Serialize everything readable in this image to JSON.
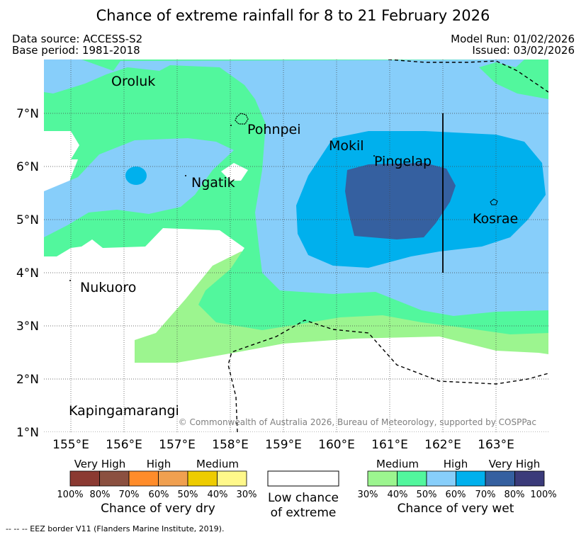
{
  "title": "Chance of extreme rainfall for 8 to 21 February 2026",
  "meta": {
    "data_source": "Data source: ACCESS-S2",
    "base_period": "Base period: 1981-2018",
    "model_run": "Model Run: 01/02/2026",
    "issued": "Issued: 03/02/2026"
  },
  "map": {
    "lon_ticks": [
      "155°E",
      "156°E",
      "157°E",
      "158°E",
      "159°E",
      "160°E",
      "161°E",
      "162°E",
      "163°E"
    ],
    "lat_ticks": [
      "7°N",
      "6°N",
      "5°N",
      "4°N",
      "3°N",
      "2°N",
      "1°N"
    ],
    "places": {
      "oroluk": "Oroluk",
      "pohnpei": "Pohnpei",
      "mokil": "Mokil",
      "pingelap": "Pingelap",
      "ngatik": "Ngatik",
      "kosrae": "Kosrae",
      "nukuoro": "Nukuoro",
      "kapingamarangi": "Kapingamarangi"
    },
    "copyright": "© Commonwealth of Australia 2026, Bureau of Meteorology, supported by COSPPac"
  },
  "legend": {
    "dry": {
      "groups": [
        "Very High",
        "High",
        "Medium"
      ],
      "ticks": [
        "100%",
        "80%",
        "70%",
        "60%",
        "50%",
        "40%",
        "30%"
      ],
      "colors": [
        "#8b3a32",
        "#8b5040",
        "#ff8c2a",
        "#f0a050",
        "#eecc00",
        "#fff88a"
      ],
      "caption": "Chance of very dry"
    },
    "low": {
      "caption_line1": "Low chance",
      "caption_line2": "of extreme"
    },
    "wet": {
      "groups": [
        "Medium",
        "High",
        "Very High"
      ],
      "ticks": [
        "30%",
        "40%",
        "50%",
        "60%",
        "70%",
        "80%",
        "100%"
      ],
      "colors": [
        "#9cf58f",
        "#52f79d",
        "#87cefa",
        "#00b0ed",
        "#3560a0",
        "#3b3b7a"
      ],
      "caption": "Chance of very wet"
    }
  },
  "footer": "--  --  -- EEZ border V11 (Flanders Marine Institute, 2019)."
}
